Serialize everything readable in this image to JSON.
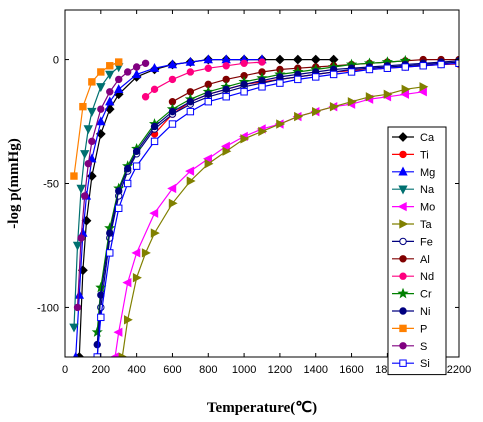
{
  "chart_data": {
    "type": "line",
    "xlabel": "Temperature(℃)",
    "ylabel": "-log p(mmHg)",
    "xlim": [
      0,
      2200
    ],
    "ylim": [
      -120,
      20
    ],
    "xticks": [
      0,
      200,
      400,
      600,
      800,
      1000,
      1200,
      1400,
      1600,
      1800,
      2000,
      2200
    ],
    "yticks": [
      0,
      -50,
      -100
    ],
    "legend_position": "right",
    "series": [
      {
        "name": "Ca",
        "color": "#000000",
        "marker": "diamond",
        "fill": true,
        "x": [
          80,
          100,
          120,
          150,
          200,
          250,
          300,
          400,
          500,
          600,
          700,
          800,
          900,
          1000,
          1100,
          1200,
          1300,
          1400,
          1500
        ],
        "y": [
          -120,
          -85,
          -65,
          -47,
          -30,
          -20,
          -14,
          -7,
          -4,
          -2,
          -1,
          0,
          0,
          0,
          0,
          0,
          0,
          0,
          0
        ]
      },
      {
        "name": "Ti",
        "color": "#ff0000",
        "marker": "circle",
        "fill": true,
        "x": [
          500,
          600,
          700,
          800,
          900,
          1000,
          1100,
          1200,
          1300,
          1400,
          1500,
          1600,
          1700,
          1800,
          1900,
          2000,
          2100,
          2200
        ],
        "y": [
          -30,
          -22,
          -17,
          -14,
          -12,
          -10,
          -9,
          -8,
          -7,
          -6,
          -5,
          -4.5,
          -4,
          -3.5,
          -3,
          -2.5,
          -2,
          -1.8
        ]
      },
      {
        "name": "Mg",
        "color": "#0000ff",
        "marker": "triangle-up",
        "fill": true,
        "x": [
          60,
          80,
          100,
          120,
          150,
          200,
          250,
          300,
          400,
          500,
          600,
          700,
          800,
          900,
          1000,
          1100
        ],
        "y": [
          -120,
          -95,
          -70,
          -55,
          -40,
          -25,
          -17,
          -12,
          -6,
          -3.5,
          -2,
          -1,
          0,
          0,
          0,
          0
        ]
      },
      {
        "name": "Na",
        "color": "#007070",
        "marker": "triangle-down",
        "fill": true,
        "x": [
          50,
          70,
          90,
          110,
          130,
          150,
          200,
          250,
          300
        ],
        "y": [
          -108,
          -75,
          -52,
          -38,
          -28,
          -21,
          -11,
          -6,
          -3
        ]
      },
      {
        "name": "Mo",
        "color": "#ff00ff",
        "marker": "triangle-left",
        "fill": true,
        "x": [
          280,
          300,
          350,
          400,
          500,
          600,
          700,
          800,
          900,
          1000,
          1100,
          1200,
          1300,
          1400,
          1500,
          1600,
          1700,
          1800,
          1900,
          2000
        ],
        "y": [
          -120,
          -110,
          -90,
          -78,
          -62,
          -52,
          -45,
          -40,
          -35,
          -31,
          -28,
          -26,
          -23,
          -21,
          -19,
          -18,
          -16,
          -15,
          -14,
          -13
        ]
      },
      {
        "name": "Ta",
        "color": "#808000",
        "marker": "triangle-right",
        "fill": true,
        "x": [
          320,
          350,
          400,
          450,
          500,
          600,
          700,
          800,
          900,
          1000,
          1100,
          1200,
          1300,
          1400,
          1500,
          1600,
          1700,
          1800,
          1900,
          2000
        ],
        "y": [
          -120,
          -105,
          -88,
          -78,
          -70,
          -58,
          -49,
          -42,
          -37,
          -32,
          -29,
          -26,
          -23,
          -21,
          -19,
          -17,
          -15,
          -14,
          -12,
          -11
        ]
      },
      {
        "name": "Fe",
        "color": "#000080",
        "marker": "circle",
        "fill": false,
        "x": [
          180,
          200,
          250,
          300,
          350,
          400,
          500,
          600,
          700,
          800,
          900,
          1000,
          1100,
          1200,
          1300,
          1400,
          1500,
          1600,
          1700,
          1800,
          1900,
          2000,
          2100,
          2200
        ],
        "y": [
          -120,
          -100,
          -72,
          -55,
          -45,
          -38,
          -28,
          -22,
          -18,
          -15,
          -13,
          -11,
          -9.5,
          -8,
          -7,
          -6,
          -5,
          -4,
          -3.5,
          -3,
          -2.5,
          -2,
          -1.5,
          -1
        ]
      },
      {
        "name": "Al",
        "color": "#800000",
        "marker": "circle",
        "fill": true,
        "x": [
          600,
          700,
          800,
          900,
          1000,
          1100,
          1200,
          1300,
          1400,
          1500,
          1600,
          1700,
          1800,
          1900,
          2000,
          2100,
          2200
        ],
        "y": [
          -17,
          -13,
          -10,
          -8,
          -6.5,
          -5,
          -4,
          -3.5,
          -3,
          -2.5,
          -2,
          -1.5,
          -1,
          -0.5,
          0,
          0,
          0
        ]
      },
      {
        "name": "Nd",
        "color": "#ff0080",
        "marker": "circle",
        "fill": true,
        "x": [
          450,
          500,
          600,
          700,
          800,
          900,
          1000,
          1100
        ],
        "y": [
          -15,
          -12,
          -8,
          -5,
          -3.5,
          -2.5,
          -1.5,
          -1
        ]
      },
      {
        "name": "Cr",
        "color": "#008000",
        "marker": "star",
        "fill": true,
        "x": [
          180,
          200,
          250,
          300,
          350,
          400,
          500,
          600,
          700,
          800,
          900,
          1000,
          1100,
          1200,
          1300,
          1400,
          1500,
          1600,
          1700,
          1800,
          1900
        ],
        "y": [
          -110,
          -92,
          -68,
          -52,
          -43,
          -36,
          -26,
          -20,
          -16,
          -13,
          -11,
          -9,
          -7.5,
          -6,
          -5,
          -4,
          -3,
          -2,
          -1.5,
          -1,
          -0.5
        ]
      },
      {
        "name": "Ni",
        "color": "#000080",
        "marker": "circle",
        "fill": true,
        "x": [
          180,
          200,
          250,
          300,
          350,
          400,
          500,
          600,
          700,
          800,
          900,
          1000,
          1100,
          1200,
          1300,
          1400,
          1500,
          1600,
          1700,
          1800,
          1900,
          2000,
          2100,
          2200
        ],
        "y": [
          -115,
          -95,
          -70,
          -53,
          -44,
          -37,
          -27,
          -21,
          -17,
          -14,
          -12,
          -10,
          -8.5,
          -7,
          -6,
          -5,
          -4,
          -3.5,
          -3,
          -2.5,
          -2,
          -1.5,
          -1,
          -0.5
        ]
      },
      {
        "name": "P",
        "color": "#ff8000",
        "marker": "square",
        "fill": true,
        "x": [
          50,
          100,
          150,
          200,
          250,
          300
        ],
        "y": [
          -47,
          -19,
          -9,
          -5,
          -2.5,
          -1
        ]
      },
      {
        "name": "S",
        "color": "#800080",
        "marker": "circle",
        "fill": true,
        "x": [
          70,
          90,
          110,
          130,
          150,
          200,
          250,
          300,
          350,
          400,
          450
        ],
        "y": [
          -100,
          -72,
          -55,
          -42,
          -33,
          -20,
          -13,
          -8,
          -5,
          -3,
          -1.5
        ]
      },
      {
        "name": "Si",
        "color": "#0000ff",
        "marker": "square",
        "fill": false,
        "x": [
          180,
          200,
          250,
          300,
          350,
          400,
          500,
          600,
          700,
          800,
          900,
          1000,
          1100,
          1200,
          1300,
          1400,
          1500,
          1600,
          1700,
          1800,
          1900,
          2000,
          2100,
          2200
        ],
        "y": [
          -120,
          -104,
          -78,
          -60,
          -50,
          -43,
          -33,
          -26,
          -21,
          -17,
          -15,
          -13,
          -11,
          -9.5,
          -8,
          -7,
          -6,
          -5,
          -4,
          -3.5,
          -3,
          -2.5,
          -2,
          -1.5
        ]
      }
    ]
  }
}
